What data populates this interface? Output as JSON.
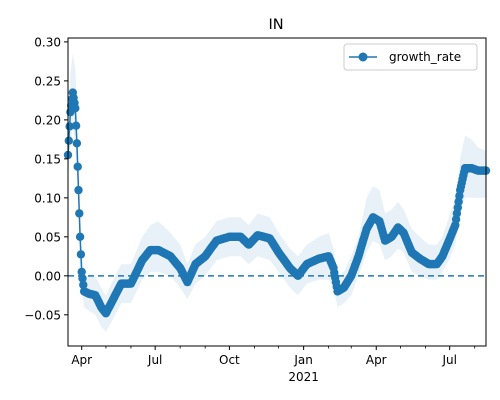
{
  "chart_data": {
    "type": "line",
    "title": "IN",
    "xlabel": "",
    "ylabel": "",
    "x_range": [
      "2020-03-15",
      "2021-08-15"
    ],
    "ylim": [
      -0.09,
      0.305
    ],
    "y_ticks": [
      -0.05,
      0.0,
      0.05,
      0.1,
      0.15,
      0.2,
      0.25,
      0.3
    ],
    "y_tick_labels": [
      "−0.05",
      "0.00",
      "0.05",
      "0.10",
      "0.15",
      "0.20",
      "0.25",
      "0.30"
    ],
    "x_ticks": [
      {
        "date": "2020-04-01",
        "label": "Apr"
      },
      {
        "date": "2020-07-01",
        "label": "Jul"
      },
      {
        "date": "2020-10-01",
        "label": "Oct"
      },
      {
        "date": "2021-01-01",
        "label": "Jan",
        "sublabel": "2021"
      },
      {
        "date": "2021-04-01",
        "label": "Apr"
      },
      {
        "date": "2021-07-01",
        "label": "Jul"
      }
    ],
    "grid": false,
    "legend": {
      "position": "top-right",
      "entries": [
        "growth_rate"
      ]
    },
    "reference_line": {
      "y": 0.0,
      "style": "dashed"
    },
    "colors": {
      "series": "#1f77b4",
      "band": "#1f77b4"
    },
    "series": [
      {
        "name": "growth_rate",
        "marker": "circle",
        "band": "confidence interval",
        "anchors": [
          [
            "2020-03-15",
            0.155,
            0.12,
            0.19
          ],
          [
            "2020-03-18",
            0.21,
            0.17,
            0.26
          ],
          [
            "2020-03-21",
            0.235,
            0.19,
            0.285
          ],
          [
            "2020-03-24",
            0.215,
            0.17,
            0.265
          ],
          [
            "2020-03-26",
            0.17,
            0.13,
            0.22
          ],
          [
            "2020-03-28",
            0.11,
            0.08,
            0.15
          ],
          [
            "2020-03-30",
            0.05,
            0.025,
            0.08
          ],
          [
            "2020-04-01",
            0.005,
            -0.015,
            0.03
          ],
          [
            "2020-04-04",
            -0.02,
            -0.04,
            0.0
          ],
          [
            "2020-04-10",
            -0.023,
            -0.045,
            0.0
          ],
          [
            "2020-04-18",
            -0.025,
            -0.05,
            0.0
          ],
          [
            "2020-04-25",
            -0.04,
            -0.065,
            -0.015
          ],
          [
            "2020-05-01",
            -0.048,
            -0.072,
            -0.025
          ],
          [
            "2020-05-10",
            -0.03,
            -0.055,
            -0.005
          ],
          [
            "2020-05-20",
            -0.01,
            -0.035,
            0.015
          ],
          [
            "2020-06-01",
            -0.01,
            -0.035,
            0.015
          ],
          [
            "2020-06-15",
            0.02,
            -0.005,
            0.05
          ],
          [
            "2020-06-25",
            0.033,
            0.005,
            0.065
          ],
          [
            "2020-07-05",
            0.033,
            0.005,
            0.07
          ],
          [
            "2020-07-20",
            0.025,
            0.0,
            0.055
          ],
          [
            "2020-08-01",
            0.01,
            -0.015,
            0.04
          ],
          [
            "2020-08-10",
            -0.008,
            -0.03,
            0.015
          ],
          [
            "2020-08-20",
            0.015,
            -0.01,
            0.04
          ],
          [
            "2020-09-01",
            0.025,
            0.0,
            0.05
          ],
          [
            "2020-09-15",
            0.045,
            0.02,
            0.07
          ],
          [
            "2020-10-01",
            0.05,
            0.025,
            0.075
          ],
          [
            "2020-10-15",
            0.05,
            0.025,
            0.075
          ],
          [
            "2020-10-25",
            0.04,
            0.015,
            0.065
          ],
          [
            "2020-11-05",
            0.052,
            0.025,
            0.08
          ],
          [
            "2020-11-20",
            0.048,
            0.02,
            0.075
          ],
          [
            "2020-12-01",
            0.03,
            0.005,
            0.055
          ],
          [
            "2020-12-15",
            0.01,
            -0.015,
            0.035
          ],
          [
            "2020-12-25",
            0.0,
            -0.025,
            0.025
          ],
          [
            "2021-01-05",
            0.015,
            -0.01,
            0.04
          ],
          [
            "2021-01-20",
            0.022,
            -0.005,
            0.05
          ],
          [
            "2021-02-01",
            0.025,
            -0.005,
            0.055
          ],
          [
            "2021-02-07",
            0.01,
            -0.015,
            0.035
          ],
          [
            "2021-02-12",
            -0.02,
            -0.04,
            0.0
          ],
          [
            "2021-02-20",
            -0.015,
            -0.035,
            0.005
          ],
          [
            "2021-03-01",
            0.0,
            -0.025,
            0.025
          ],
          [
            "2021-03-10",
            0.025,
            0.0,
            0.05
          ],
          [
            "2021-03-20",
            0.06,
            0.03,
            0.1
          ],
          [
            "2021-03-28",
            0.075,
            0.045,
            0.115
          ],
          [
            "2021-04-05",
            0.07,
            0.04,
            0.11
          ],
          [
            "2021-04-12",
            0.045,
            0.02,
            0.08
          ],
          [
            "2021-04-20",
            0.05,
            0.025,
            0.085
          ],
          [
            "2021-04-28",
            0.062,
            0.035,
            0.095
          ],
          [
            "2021-05-05",
            0.055,
            0.03,
            0.085
          ],
          [
            "2021-05-15",
            0.03,
            0.005,
            0.06
          ],
          [
            "2021-05-25",
            0.022,
            0.0,
            0.05
          ],
          [
            "2021-06-05",
            0.015,
            -0.005,
            0.04
          ],
          [
            "2021-06-15",
            0.015,
            -0.005,
            0.04
          ],
          [
            "2021-06-22",
            0.025,
            0.005,
            0.05
          ],
          [
            "2021-06-30",
            0.045,
            0.02,
            0.075
          ],
          [
            "2021-07-08",
            0.065,
            0.04,
            0.1
          ],
          [
            "2021-07-14",
            0.11,
            0.08,
            0.15
          ],
          [
            "2021-07-20",
            0.138,
            0.1,
            0.18
          ],
          [
            "2021-07-28",
            0.138,
            0.1,
            0.175
          ],
          [
            "2021-08-05",
            0.135,
            0.1,
            0.165
          ],
          [
            "2021-08-15",
            0.135,
            0.1,
            0.16
          ]
        ]
      }
    ]
  }
}
